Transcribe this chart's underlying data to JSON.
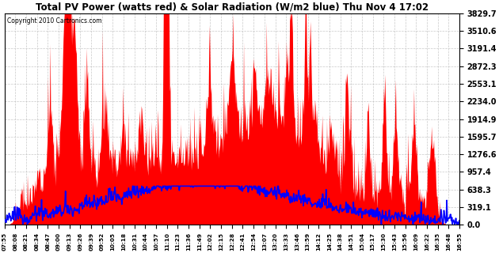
{
  "title": "Total PV Power (watts red) & Solar Radiation (W/m2 blue) Thu Nov 4 17:02",
  "copyright_text": "Copyright 2010 Cartronics.com",
  "y_max": 3829.7,
  "y_min": 0.0,
  "y_ticks": [
    0.0,
    319.1,
    638.3,
    957.4,
    1276.6,
    1595.7,
    1914.9,
    2234.0,
    2553.1,
    2872.3,
    3191.4,
    3510.6,
    3829.7
  ],
  "background_color": "#ffffff",
  "plot_bg_color": "#ffffff",
  "grid_color": "#bbbbbb",
  "red_color": "#ff0000",
  "blue_color": "#0000ff",
  "x_labels": [
    "07:55",
    "08:08",
    "08:21",
    "08:34",
    "08:47",
    "09:00",
    "09:13",
    "09:26",
    "09:39",
    "09:52",
    "10:05",
    "10:18",
    "10:31",
    "10:44",
    "10:57",
    "11:10",
    "11:23",
    "11:36",
    "11:49",
    "12:02",
    "12:15",
    "12:28",
    "12:41",
    "12:54",
    "13:07",
    "13:20",
    "13:33",
    "13:46",
    "13:59",
    "14:12",
    "14:25",
    "14:38",
    "14:51",
    "15:04",
    "15:17",
    "15:30",
    "15:43",
    "15:56",
    "16:09",
    "16:22",
    "16:35",
    "16:48",
    "16:55"
  ],
  "solar_max_scaled": 700,
  "solar_base": 300,
  "pv_base_peak": 1200,
  "pv_spike_max": 3829.7
}
